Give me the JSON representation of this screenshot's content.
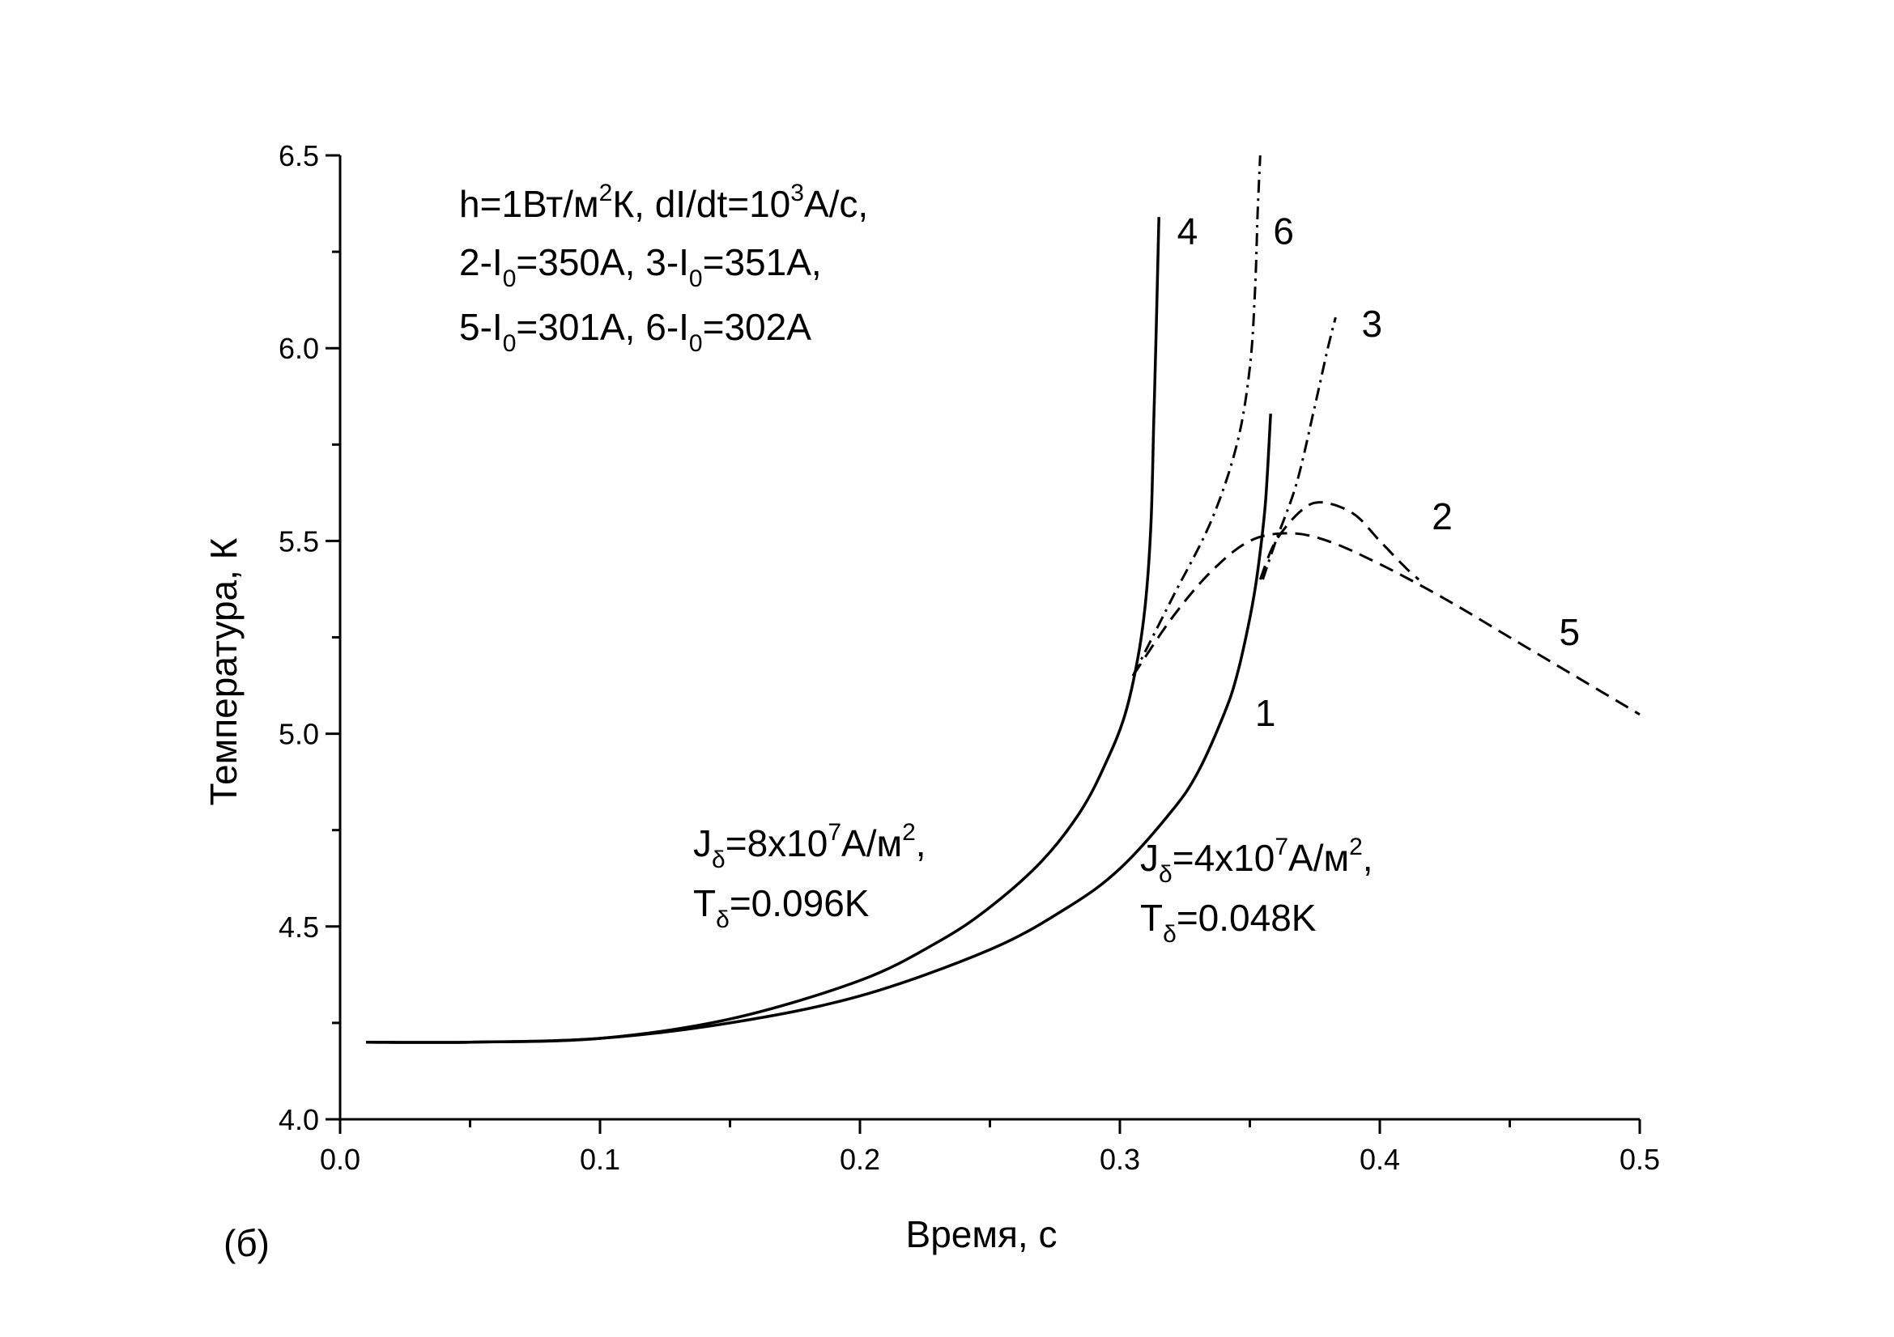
{
  "chart_data": {
    "type": "line",
    "xlabel": "Время, с",
    "ylabel": "Температура, К",
    "xlim": [
      0.0,
      0.5
    ],
    "ylim": [
      4.0,
      6.5
    ],
    "x_ticks": [
      "0.0",
      "0.1",
      "0.2",
      "0.3",
      "0.4",
      "0.5"
    ],
    "y_ticks": [
      "4.0",
      "4.5",
      "5.0",
      "5.5",
      "6.0",
      "6.5"
    ],
    "grid": false,
    "legend": "none",
    "panel_label": "(б)",
    "annotation_top": {
      "line1": {
        "a": "h=1Вт/м",
        "sup1": "2",
        "b": "К, dI/dt=10",
        "sup2": "3",
        "c": "А/с,"
      },
      "line2": {
        "a": "2-I",
        "sub1": "0",
        "b": "=350А, 3-I",
        "sub2": "0",
        "c": "=351А,"
      },
      "line3": {
        "a": "5-I",
        "sub1": "0",
        "b": "=301А, 6-I",
        "sub2": "0",
        "c": "=302А"
      }
    },
    "annotation_left": {
      "line1": {
        "a": "J",
        "sub": "δ",
        "b": "=8x10",
        "sup1": "7",
        "c": "А/м",
        "sup2": "2",
        "d": ","
      },
      "line2": {
        "a": "T",
        "sub": "δ",
        "b": "=0.096K"
      }
    },
    "annotation_right": {
      "line1": {
        "a": "J",
        "sub": "δ",
        "b": "=4x10",
        "sup1": "7",
        "c": "А/м",
        "sup2": "2",
        "d": ","
      },
      "line2": {
        "a": "T",
        "sub": "δ",
        "b": "=0.048K"
      }
    },
    "series": [
      {
        "label": "1",
        "style": "solid",
        "points": [
          [
            0.01,
            4.2
          ],
          [
            0.05,
            4.2
          ],
          [
            0.1,
            4.21
          ],
          [
            0.15,
            4.25
          ],
          [
            0.2,
            4.32
          ],
          [
            0.25,
            4.44
          ],
          [
            0.28,
            4.55
          ],
          [
            0.3,
            4.65
          ],
          [
            0.32,
            4.8
          ],
          [
            0.33,
            4.9
          ],
          [
            0.34,
            5.05
          ],
          [
            0.345,
            5.15
          ],
          [
            0.35,
            5.3
          ],
          [
            0.353,
            5.42
          ],
          [
            0.356,
            5.6
          ],
          [
            0.358,
            5.83
          ]
        ]
      },
      {
        "label": "4",
        "style": "solid",
        "points": [
          [
            0.01,
            4.2
          ],
          [
            0.05,
            4.2
          ],
          [
            0.1,
            4.21
          ],
          [
            0.15,
            4.26
          ],
          [
            0.2,
            4.36
          ],
          [
            0.23,
            4.46
          ],
          [
            0.25,
            4.55
          ],
          [
            0.27,
            4.67
          ],
          [
            0.285,
            4.8
          ],
          [
            0.295,
            4.93
          ],
          [
            0.302,
            5.05
          ],
          [
            0.307,
            5.2
          ],
          [
            0.31,
            5.35
          ],
          [
            0.312,
            5.55
          ],
          [
            0.313,
            5.8
          ],
          [
            0.314,
            6.05
          ],
          [
            0.315,
            6.34
          ]
        ]
      },
      {
        "label": "2",
        "style": "dashed",
        "points": [
          [
            0.354,
            5.4
          ],
          [
            0.36,
            5.5
          ],
          [
            0.37,
            5.58
          ],
          [
            0.378,
            5.6
          ],
          [
            0.39,
            5.57
          ],
          [
            0.4,
            5.5
          ],
          [
            0.41,
            5.43
          ],
          [
            0.415,
            5.4
          ]
        ]
      },
      {
        "label": "5",
        "style": "dashed",
        "points": [
          [
            0.305,
            5.15
          ],
          [
            0.32,
            5.3
          ],
          [
            0.335,
            5.42
          ],
          [
            0.35,
            5.5
          ],
          [
            0.365,
            5.52
          ],
          [
            0.38,
            5.5
          ],
          [
            0.4,
            5.44
          ],
          [
            0.425,
            5.35
          ],
          [
            0.45,
            5.25
          ],
          [
            0.475,
            5.15
          ],
          [
            0.5,
            5.05
          ]
        ]
      },
      {
        "label": "3",
        "style": "dashdot",
        "points": [
          [
            0.355,
            5.4
          ],
          [
            0.36,
            5.5
          ],
          [
            0.368,
            5.65
          ],
          [
            0.375,
            5.85
          ],
          [
            0.38,
            6.0
          ],
          [
            0.383,
            6.08
          ]
        ]
      },
      {
        "label": "6",
        "style": "dashdot",
        "points": [
          [
            0.305,
            5.15
          ],
          [
            0.32,
            5.35
          ],
          [
            0.335,
            5.55
          ],
          [
            0.345,
            5.75
          ],
          [
            0.35,
            5.95
          ],
          [
            0.352,
            6.15
          ],
          [
            0.353,
            6.35
          ],
          [
            0.354,
            6.5
          ]
        ]
      }
    ],
    "curve_labels": [
      {
        "text": "1",
        "x": 0.352,
        "y": 5.02
      },
      {
        "text": "4",
        "x": 0.322,
        "y": 6.27
      },
      {
        "text": "6",
        "x": 0.359,
        "y": 6.27
      },
      {
        "text": "3",
        "x": 0.393,
        "y": 6.03
      },
      {
        "text": "2",
        "x": 0.42,
        "y": 5.53
      },
      {
        "text": "5",
        "x": 0.469,
        "y": 5.23
      }
    ]
  }
}
